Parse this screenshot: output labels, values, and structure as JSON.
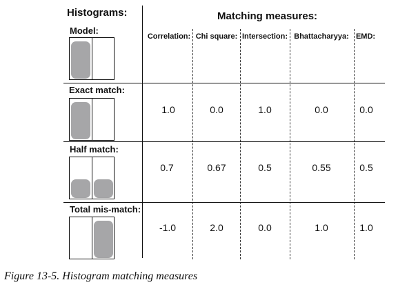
{
  "histograms_heading": "Histograms:",
  "measures_heading": "Matching measures:",
  "columns": [
    "Correlation:",
    "Chi square:",
    "Intersection:",
    "Bhattacharyya:",
    "EMD:"
  ],
  "rows": [
    {
      "label": "Model:",
      "values": []
    },
    {
      "label": "Exact match:",
      "values": [
        "1.0",
        "0.0",
        "1.0",
        "0.0",
        "0.0"
      ]
    },
    {
      "label": "Half match:",
      "values": [
        "0.7",
        "0.67",
        "0.5",
        "0.55",
        "0.5"
      ]
    },
    {
      "label": "Total mis-match:",
      "values": [
        "-1.0",
        "2.0",
        "0.0",
        "1.0",
        "1.0"
      ]
    }
  ],
  "caption": "Figure 13-5. Histogram matching measures",
  "colors": {
    "bar": "#a6a6a8",
    "line": "#111111"
  }
}
